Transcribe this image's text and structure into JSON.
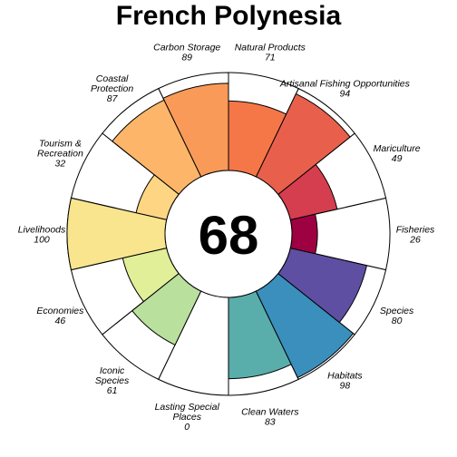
{
  "chart_data": {
    "type": "flower",
    "title": "French Polynesia",
    "center_value": "68",
    "max_value": 100,
    "petals": [
      {
        "name": "Fisheries",
        "value": 26,
        "color": "#9e0142"
      },
      {
        "name": "Mariculture",
        "value": 49,
        "color": "#d53e4f"
      },
      {
        "name": "Artisanal Fishing Opportunities",
        "value": 94,
        "color": "#e8604c"
      },
      {
        "name": "Natural Products",
        "value": 71,
        "color": "#f57748"
      },
      {
        "name": "Carbon Storage",
        "value": 89,
        "color": "#fa9a58"
      },
      {
        "name": "Coastal Protection",
        "value": 87,
        "color": "#fdb56a"
      },
      {
        "name": "Tourism & Recreation",
        "value": 32,
        "color": "#fed683"
      },
      {
        "name": "Livelihoods",
        "value": 100,
        "color": "#f8e58e"
      },
      {
        "name": "Economies",
        "value": 46,
        "color": "#e0ef98"
      },
      {
        "name": "Iconic Species",
        "value": 61,
        "color": "#b9e09d"
      },
      {
        "name": "Lasting Special Places",
        "value": 0,
        "color": "#8ccfa4"
      },
      {
        "name": "Clean Waters",
        "value": 83,
        "color": "#59aeab"
      },
      {
        "name": "Habitats",
        "value": 98,
        "color": "#3a8fbd"
      },
      {
        "name": "Species",
        "value": 80,
        "color": "#5e4fa2"
      }
    ],
    "label_lines": [
      {
        "lines": [
          "Fisheries",
          "26"
        ]
      },
      {
        "lines": [
          "Mariculture",
          "49"
        ]
      },
      {
        "lines": [
          "Artisanal Fishing Opportunities",
          "94"
        ]
      },
      {
        "lines": [
          "Natural Products",
          "71"
        ]
      },
      {
        "lines": [
          "Carbon Storage",
          "89"
        ]
      },
      {
        "lines": [
          "Coastal",
          "Protection",
          "87"
        ]
      },
      {
        "lines": [
          "Tourism &",
          "Recreation",
          "32"
        ]
      },
      {
        "lines": [
          "Livelihoods",
          "100"
        ]
      },
      {
        "lines": [
          "Economies",
          "46"
        ]
      },
      {
        "lines": [
          "Iconic",
          "Species",
          "61"
        ]
      },
      {
        "lines": [
          "Lasting Special",
          "Places",
          "0"
        ]
      },
      {
        "lines": [
          "Clean Waters",
          "83"
        ]
      },
      {
        "lines": [
          "Habitats",
          "98"
        ]
      },
      {
        "lines": [
          "Species",
          "80"
        ]
      }
    ]
  }
}
